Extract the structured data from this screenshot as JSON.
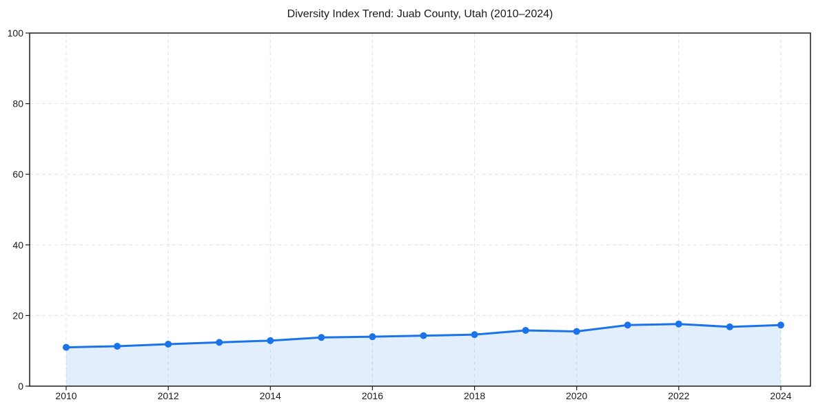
{
  "page": {
    "background": "#ffffff"
  },
  "chart_data": {
    "type": "line",
    "title": "Diversity Index Trend: Juab County, Utah (2010–2024)",
    "x": [
      2010,
      2011,
      2012,
      2013,
      2014,
      2015,
      2016,
      2017,
      2018,
      2019,
      2020,
      2021,
      2022,
      2023,
      2024
    ],
    "values": [
      11.0,
      11.3,
      11.9,
      12.4,
      12.9,
      13.8,
      14.0,
      14.3,
      14.6,
      15.8,
      15.5,
      17.3,
      17.6,
      16.8,
      17.3
    ],
    "xlabel": "",
    "ylabel": "",
    "xlim": [
      2010,
      2024
    ],
    "ylim": [
      0,
      100
    ],
    "x_tick_labels": [
      "2010",
      "2012",
      "2014",
      "2016",
      "2018",
      "2020",
      "2022",
      "2024"
    ],
    "y_tick_labels": [
      "0",
      "20",
      "40",
      "60",
      "80",
      "100"
    ],
    "grid": "dashed",
    "legend": "none",
    "area_fill": true,
    "marker": "circle",
    "colors": {
      "line": "#1a73e8",
      "marker": "#1a73e8",
      "area_fill": "rgba(26,115,232,0.12)",
      "grid": "#e2e2e2",
      "axis": "#1a1a1a",
      "text": "#1a1a1a",
      "background": "#ffffff"
    }
  }
}
